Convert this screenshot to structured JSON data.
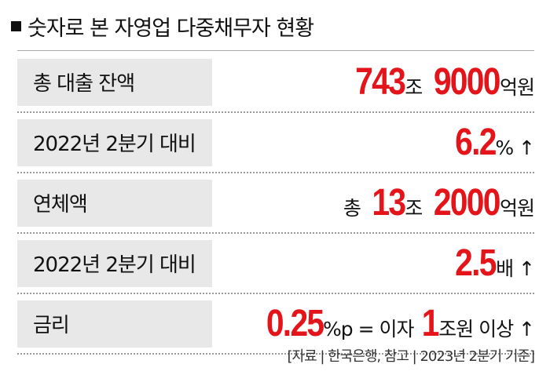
{
  "header": {
    "title": "숫자로 본 자영업 다중채무자 현황"
  },
  "rows": [
    {
      "label": "총 대출 잔액",
      "value": [
        {
          "text": "743",
          "color": "#e3151a",
          "big": true
        },
        {
          "text": "조",
          "color": "#111111",
          "big": false
        },
        {
          "text": "9000",
          "color": "#e3151a",
          "big": true
        },
        {
          "text": "억원",
          "color": "#111111",
          "big": false
        }
      ]
    },
    {
      "label": "2022년 2분기 대비",
      "value": [
        {
          "text": "6.2",
          "color": "#e3151a",
          "big": true
        },
        {
          "text": "% ↑",
          "color": "#111111",
          "big": false
        }
      ]
    },
    {
      "label": "연체액",
      "value": [
        {
          "text": "총 ",
          "color": "#111111",
          "big": false
        },
        {
          "text": "13",
          "color": "#e3151a",
          "big": true
        },
        {
          "text": "조",
          "color": "#111111",
          "big": false
        },
        {
          "text": "2000",
          "color": "#e3151a",
          "big": true
        },
        {
          "text": "억원",
          "color": "#111111",
          "big": false
        }
      ]
    },
    {
      "label": "2022년 2분기 대비",
      "value": [
        {
          "text": "2.5",
          "color": "#e3151a",
          "big": true
        },
        {
          "text": "배 ↑",
          "color": "#111111",
          "big": false
        }
      ]
    },
    {
      "label": "금리",
      "value": [
        {
          "text": "0.25",
          "color": "#e3151a",
          "big": true
        },
        {
          "text": "%p = 이자 ",
          "color": "#111111",
          "big": false
        },
        {
          "text": "1",
          "color": "#e3151a",
          "big": true
        },
        {
          "text": "조원 이상 ↑",
          "color": "#111111",
          "big": false
        }
      ]
    }
  ],
  "source": "[자료 | 한국은행, 참고 | 2023년 2분기 기준]"
}
